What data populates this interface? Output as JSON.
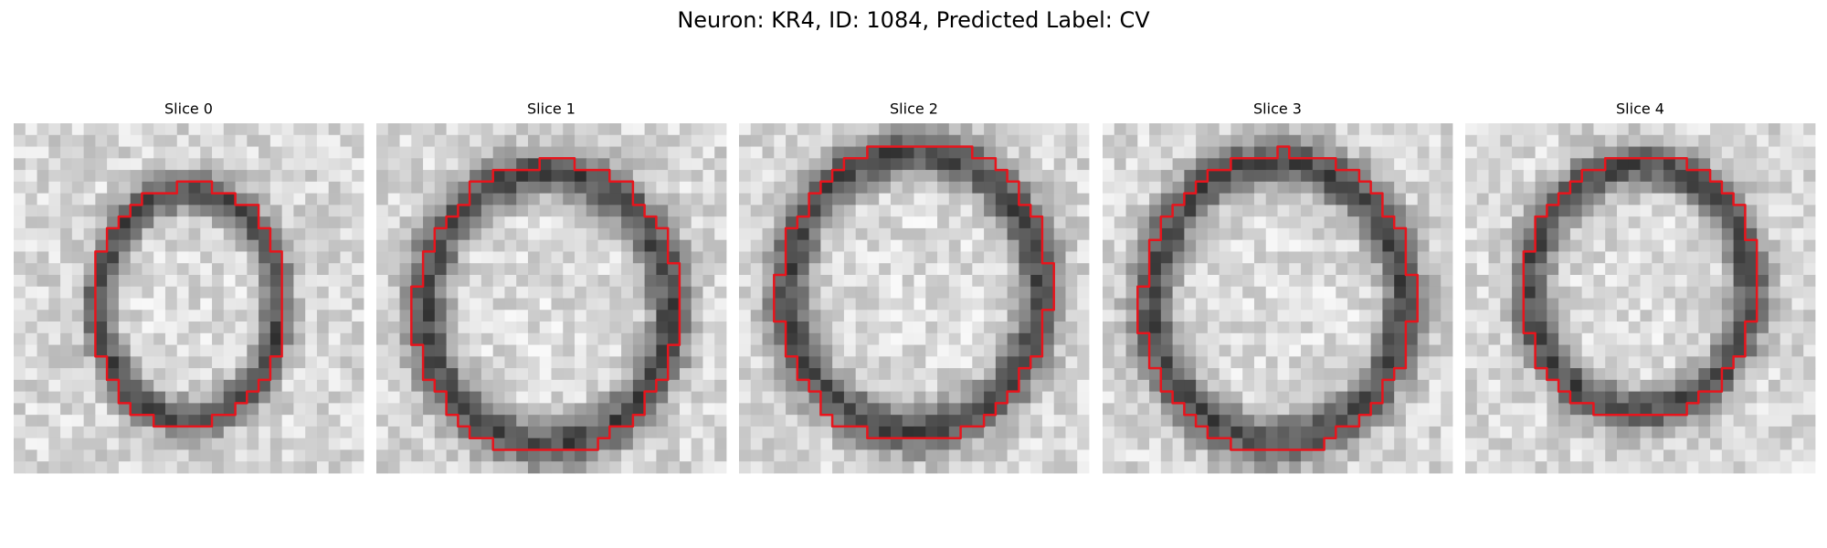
{
  "title": "Neuron: KR4, ID: 1084, Predicted Label: CV",
  "panels": [
    {
      "title": "Slice 0"
    },
    {
      "title": "Slice 1"
    },
    {
      "title": "Slice 2"
    },
    {
      "title": "Slice 3"
    },
    {
      "title": "Slice 4"
    }
  ]
}
